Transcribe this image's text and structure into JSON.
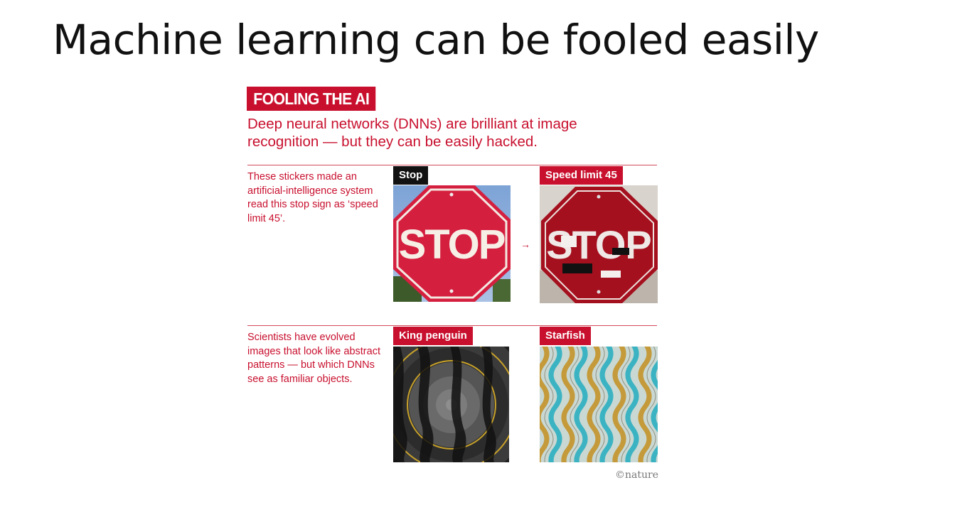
{
  "slide": {
    "title": "Machine learning can be fooled easily"
  },
  "figure": {
    "banner": "FOOLING THE AI",
    "subtitle": "Deep neural networks (DNNs) are brilliant at image recognition — but they can be easily hacked.",
    "row1": {
      "caption": "These stickers made an artificial-intelligence system read this stop sign as ‘speed limit 45’.",
      "left_label": "Stop",
      "right_label": "Speed limit 45",
      "sign_text": "STOP",
      "arrow": "→"
    },
    "row2": {
      "caption": "Scientists have evolved images that look like abstract patterns — but which DNNs see as familiar objects.",
      "left_label": "King penguin",
      "right_label": "Starfish"
    },
    "credit": "©nature"
  },
  "colors": {
    "accent_red": "#c8102e",
    "sign_red": "#d51f3f",
    "sign_dark_red": "#a5101f",
    "sky_blue": "#7da3d6"
  }
}
